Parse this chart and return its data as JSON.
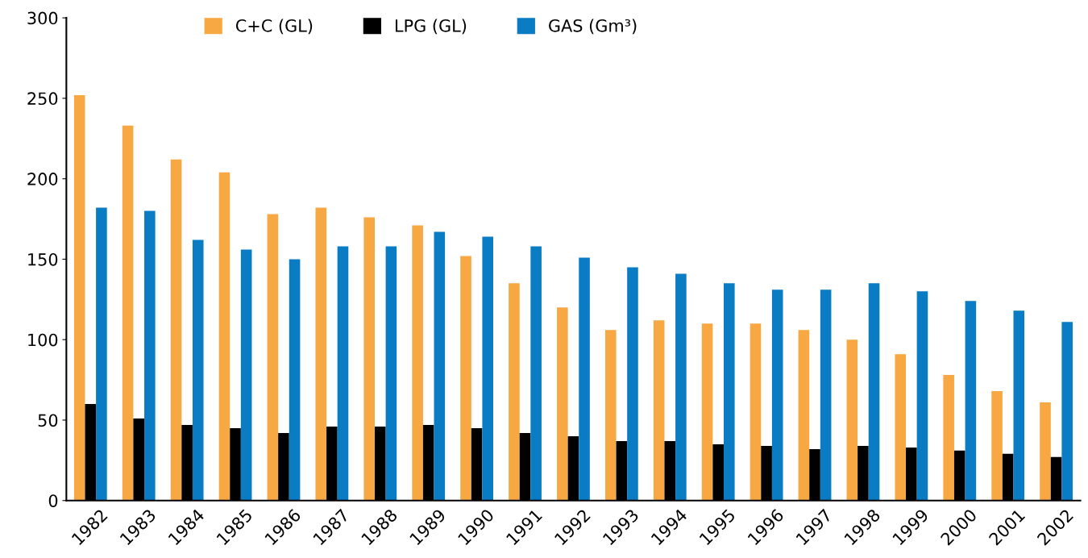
{
  "chart_data": {
    "type": "bar",
    "categories": [
      "1982",
      "1983",
      "1984",
      "1985",
      "1986",
      "1987",
      "1988",
      "1989",
      "1990",
      "1991",
      "1992",
      "1993",
      "1994",
      "1995",
      "1996",
      "1997",
      "1998",
      "1999",
      "2000",
      "2001",
      "2002"
    ],
    "series": [
      {
        "name": "C+C (GL)",
        "color": "#f7a842",
        "values": [
          252,
          233,
          212,
          204,
          178,
          182,
          176,
          171,
          152,
          135,
          120,
          106,
          112,
          110,
          110,
          106,
          100,
          91,
          78,
          68,
          61
        ]
      },
      {
        "name": "LPG (GL)",
        "color": "#000000",
        "values": [
          60,
          51,
          47,
          45,
          42,
          46,
          46,
          47,
          45,
          42,
          40,
          37,
          37,
          35,
          34,
          32,
          34,
          33,
          31,
          29,
          27
        ]
      },
      {
        "name": "GAS (Gm³)",
        "color": "#0a7cc4",
        "values": [
          182,
          180,
          162,
          156,
          150,
          158,
          158,
          167,
          164,
          158,
          151,
          145,
          141,
          135,
          131,
          131,
          135,
          130,
          124,
          118,
          111
        ]
      }
    ],
    "ylim": [
      0,
      300
    ],
    "yticks": [
      0,
      50,
      100,
      150,
      200,
      250,
      300
    ],
    "grid": false,
    "legend": "top"
  }
}
